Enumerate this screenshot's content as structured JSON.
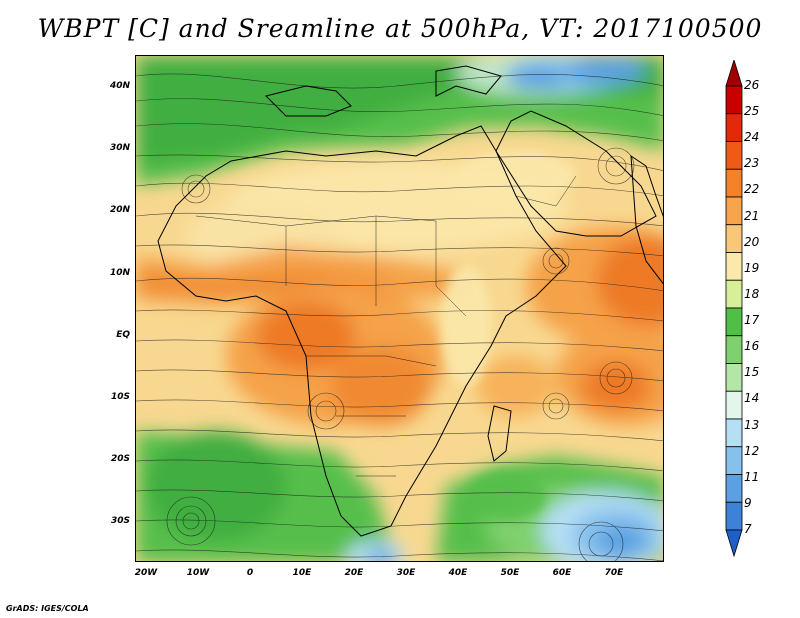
{
  "title": "WBPT [C] and Sreamline at 500hPa, VT: 2017100500",
  "credit": "GrADS: IGES/COLA",
  "map": {
    "lat_labels": [
      "40N",
      "30N",
      "20N",
      "10N",
      "EQ",
      "10S",
      "20S",
      "30S"
    ],
    "lon_labels": [
      "20W",
      "10W",
      "0",
      "10E",
      "20E",
      "30E",
      "40E",
      "50E",
      "60E",
      "70E"
    ],
    "variable": "Wet-bulb potential temperature with 500hPa streamlines",
    "extent": {
      "lon": [
        -20,
        80
      ],
      "lat": [
        -37,
        44
      ]
    }
  },
  "colorbar": {
    "labels": [
      "26",
      "25",
      "24",
      "23",
      "22",
      "21",
      "20",
      "19",
      "18",
      "17",
      "16",
      "15",
      "14",
      "13",
      "12",
      "11",
      "9",
      "7"
    ],
    "colors": [
      "#a00000",
      "#c80000",
      "#e22a0a",
      "#f05a14",
      "#f58228",
      "#f7a44a",
      "#f8c878",
      "#fbe8aa",
      "#d6ef98",
      "#4fbf45",
      "#7fd06e",
      "#b4e6a8",
      "#e2f6ec",
      "#b6def5",
      "#86c1ec",
      "#5aa0e2",
      "#3c82d8",
      "#1e60c8"
    ]
  }
}
